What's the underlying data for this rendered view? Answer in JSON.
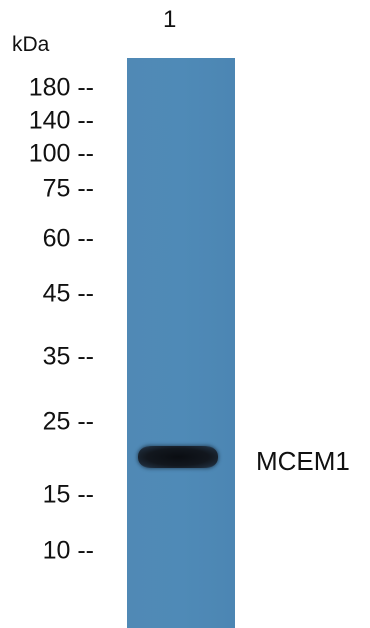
{
  "lane_label": "1",
  "unit_label": "kDa",
  "markers": [
    {
      "text": "180 --",
      "kda": 180
    },
    {
      "text": "140 --",
      "kda": 140
    },
    {
      "text": "100 --",
      "kda": 100
    },
    {
      "text": "75 --",
      "kda": 75
    },
    {
      "text": "60 --",
      "kda": 60
    },
    {
      "text": "45 --",
      "kda": 45
    },
    {
      "text": "35 --",
      "kda": 35
    },
    {
      "text": "25 --",
      "kda": 25
    },
    {
      "text": "15 --",
      "kda": 15
    },
    {
      "text": "10 --",
      "kda": 10
    }
  ],
  "band": {
    "label": "MCEM1",
    "lane": "1"
  },
  "colors": {
    "lane": "#4f8ab7",
    "band": "#0d1116",
    "text": "#111111"
  }
}
